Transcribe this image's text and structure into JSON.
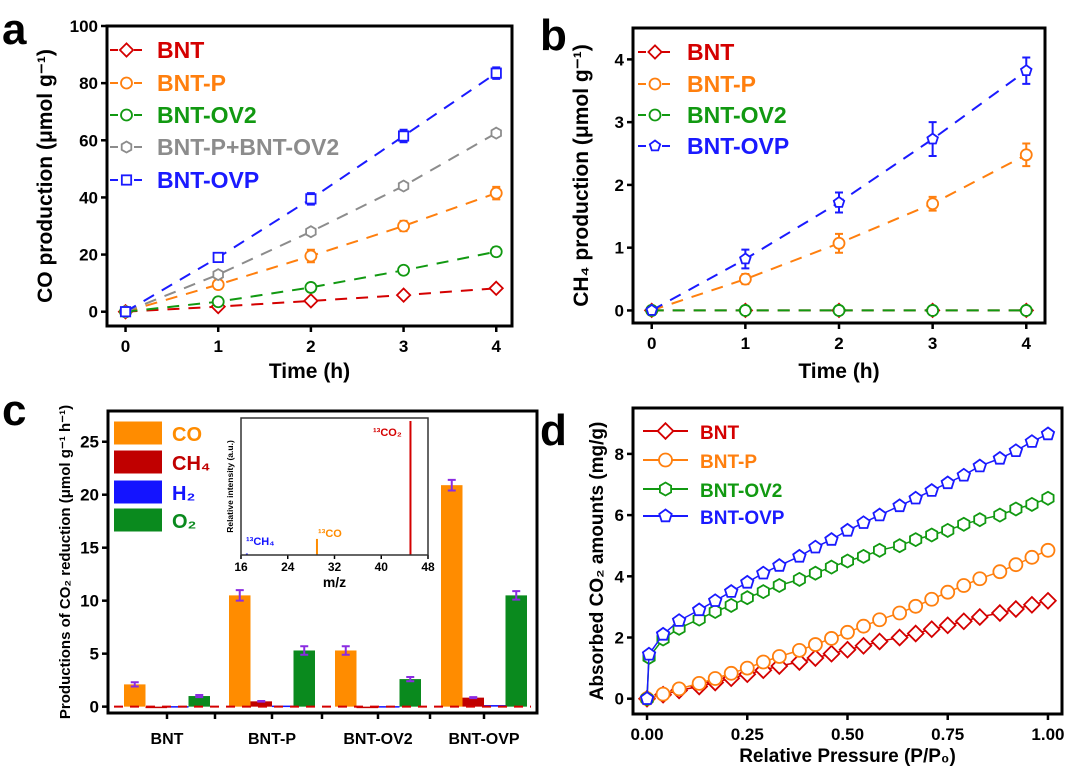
{
  "chart_data": [
    {
      "panel_label": "a",
      "type": "line",
      "xlabel": "Time (h)",
      "ylabel": "CO production (μmol g⁻¹)",
      "xlim": [
        -0.2,
        4.17
      ],
      "ylim": [
        -5,
        100
      ],
      "xticks": [
        0,
        1,
        2,
        3,
        4
      ],
      "yticks": [
        0,
        20,
        40,
        60,
        80,
        100
      ],
      "legend": "top-left",
      "grid": false,
      "line_style": "dashed",
      "series": [
        {
          "name": "BNT",
          "color": "#d40000",
          "marker": "diamond",
          "x": [
            0,
            1,
            2,
            3,
            4
          ],
          "y": [
            0,
            1.8,
            3.8,
            5.8,
            8.2
          ],
          "err": [
            0,
            0.5,
            0.6,
            0.6,
            0.7
          ]
        },
        {
          "name": "BNT-P",
          "color": "#ff7f0e",
          "marker": "circle",
          "x": [
            0,
            1,
            2,
            3,
            4
          ],
          "y": [
            0,
            9.5,
            19.5,
            30,
            41.5
          ],
          "err": [
            0,
            1.5,
            2.2,
            1.8,
            2.2
          ]
        },
        {
          "name": "BNT-OV2",
          "color": "#119911",
          "marker": "circle",
          "x": [
            0,
            1,
            2,
            3,
            4
          ],
          "y": [
            0,
            3.5,
            8.5,
            14.5,
            21
          ],
          "err": [
            0,
            0.8,
            1,
            1,
            1.5
          ]
        },
        {
          "name": "BNT-P+BNT-OV2",
          "color": "#8c8c8c",
          "marker": "hexagon",
          "x": [
            0,
            1,
            2,
            3,
            4
          ],
          "y": [
            0,
            13,
            28,
            44,
            62.5
          ],
          "err": [
            0,
            0,
            0,
            0,
            0
          ]
        },
        {
          "name": "BNT-OVP",
          "color": "#1a1aff",
          "marker": "square",
          "x": [
            0,
            1,
            2,
            3,
            4
          ],
          "y": [
            0,
            19,
            39.5,
            61.5,
            83.5
          ],
          "err": [
            0,
            1.5,
            2,
            2.2,
            2
          ]
        }
      ]
    },
    {
      "panel_label": "b",
      "type": "line",
      "xlabel": "Time (h)",
      "ylabel": "CH₄ production (μmol g⁻¹)",
      "xlim": [
        -0.2,
        4.2
      ],
      "ylim": [
        -0.2,
        4.5
      ],
      "xticks": [
        0,
        1,
        2,
        3,
        4
      ],
      "yticks": [
        0,
        1,
        2,
        3,
        4
      ],
      "legend": "top-left",
      "grid": false,
      "line_style": "dashed",
      "series": [
        {
          "name": "BNT",
          "color": "#d40000",
          "marker": "diamond",
          "x": [
            0,
            1,
            2,
            3,
            4
          ],
          "y": [
            0,
            0,
            0,
            0,
            0
          ],
          "err": [
            0,
            0,
            0,
            0,
            0
          ]
        },
        {
          "name": "BNT-P",
          "color": "#ff7f0e",
          "marker": "circle",
          "x": [
            0,
            1,
            2,
            3,
            4
          ],
          "y": [
            0,
            0.5,
            1.07,
            1.7,
            2.48
          ],
          "err": [
            0,
            0.08,
            0.15,
            0.11,
            0.18
          ]
        },
        {
          "name": "BNT-OV2",
          "color": "#119911",
          "marker": "circle",
          "x": [
            0,
            1,
            2,
            3,
            4
          ],
          "y": [
            0,
            0,
            0,
            0,
            0
          ],
          "err": [
            0,
            0,
            0,
            0,
            0
          ]
        },
        {
          "name": "BNT-OVP",
          "color": "#1a1aff",
          "marker": "pentagon",
          "x": [
            0,
            1,
            2,
            3,
            4
          ],
          "y": [
            0,
            0.82,
            1.72,
            2.73,
            3.82
          ],
          "err": [
            0,
            0.15,
            0.16,
            0.27,
            0.21
          ]
        }
      ]
    },
    {
      "panel_label": "c",
      "type": "bar",
      "xlabel": "",
      "ylabel": "Productions of CO₂ reduction (μmol g⁻¹ h⁻¹)",
      "ylim": [
        -0.6,
        27.9
      ],
      "yticks": [
        0,
        5,
        10,
        15,
        20,
        25
      ],
      "categories": [
        "BNT",
        "BNT-P",
        "BNT-OV2",
        "BNT-OVP"
      ],
      "legend": "top-left",
      "error_color": "#8a2be2",
      "zero_line_color": "#d40000",
      "series": [
        {
          "name": "CO",
          "color": "#ff8c00",
          "values": [
            2.1,
            10.5,
            5.3,
            20.9
          ],
          "err": [
            0.2,
            0.5,
            0.4,
            0.5
          ]
        },
        {
          "name": "CH₄",
          "color": "#c00000",
          "values": [
            -0.1,
            0.5,
            -0.1,
            0.85
          ],
          "err": [
            0,
            0.03,
            0,
            0.05
          ]
        },
        {
          "name": "H₂",
          "color": "#1414ff",
          "values": [
            0.05,
            0.1,
            0.05,
            0.15
          ],
          "err": [
            0,
            0,
            0,
            0
          ]
        },
        {
          "name": "O₂",
          "color": "#0a8a1e",
          "values": [
            1.0,
            5.3,
            2.6,
            10.5
          ],
          "err": [
            0.1,
            0.4,
            0.2,
            0.4
          ]
        }
      ],
      "inset": {
        "type": "bar",
        "xlabel": "m/z",
        "ylabel": "Relative intensity (a.u.)",
        "xlim": [
          16,
          48
        ],
        "xticks": [
          16,
          24,
          32,
          40,
          48
        ],
        "peaks": [
          {
            "label": "¹³CH₄",
            "x": 17,
            "intensity": 0.01,
            "color": "#1414ff"
          },
          {
            "label": "¹³CO",
            "x": 29,
            "intensity": 0.12,
            "color": "#ff8c00"
          },
          {
            "label": "¹³CO₂",
            "x": 45,
            "intensity": 1.0,
            "color": "#d40000"
          }
        ]
      }
    },
    {
      "panel_label": "d",
      "type": "line",
      "xlabel": "Relative Pressure (P/P₀)",
      "ylabel": "Absorbed CO₂ amounts (mg/g)",
      "xlim": [
        -0.035,
        1.035
      ],
      "ylim": [
        -0.5,
        9.5
      ],
      "xticks": [
        0,
        0.25,
        0.5,
        0.75,
        1.0
      ],
      "xtick_labels": [
        "0.00",
        "0.25",
        "0.50",
        "0.75",
        "1.00"
      ],
      "yticks": [
        0,
        2,
        4,
        6,
        8
      ],
      "legend": "top-left",
      "grid": false,
      "line_style": "solid",
      "series": [
        {
          "name": "BNT",
          "color": "#d40000",
          "marker": "diamond",
          "x": [
            0,
            0.04,
            0.08,
            0.13,
            0.17,
            0.21,
            0.25,
            0.29,
            0.33,
            0.38,
            0.42,
            0.46,
            0.5,
            0.54,
            0.58,
            0.63,
            0.67,
            0.71,
            0.75,
            0.79,
            0.83,
            0.88,
            0.92,
            0.96,
            1.0
          ],
          "y": [
            0,
            0.13,
            0.27,
            0.4,
            0.53,
            0.67,
            0.8,
            0.93,
            1.07,
            1.2,
            1.33,
            1.47,
            1.6,
            1.73,
            1.87,
            2.0,
            2.13,
            2.27,
            2.4,
            2.53,
            2.67,
            2.8,
            2.93,
            3.07,
            3.2
          ]
        },
        {
          "name": "BNT-P",
          "color": "#ff7f0e",
          "marker": "circle",
          "x": [
            0,
            0.04,
            0.08,
            0.13,
            0.17,
            0.21,
            0.25,
            0.29,
            0.33,
            0.38,
            0.42,
            0.46,
            0.5,
            0.54,
            0.58,
            0.63,
            0.67,
            0.71,
            0.75,
            0.79,
            0.83,
            0.88,
            0.92,
            0.96,
            1.0
          ],
          "y": [
            0,
            0.15,
            0.32,
            0.5,
            0.66,
            0.83,
            1.0,
            1.2,
            1.38,
            1.58,
            1.77,
            1.97,
            2.17,
            2.37,
            2.58,
            2.8,
            3.02,
            3.25,
            3.48,
            3.7,
            3.92,
            4.15,
            4.38,
            4.62,
            4.85
          ]
        },
        {
          "name": "BNT-OV2",
          "color": "#119911",
          "marker": "hexagon",
          "x": [
            0,
            0.005,
            0.04,
            0.08,
            0.13,
            0.17,
            0.21,
            0.25,
            0.29,
            0.33,
            0.38,
            0.42,
            0.46,
            0.5,
            0.54,
            0.58,
            0.63,
            0.67,
            0.71,
            0.75,
            0.79,
            0.83,
            0.88,
            0.92,
            0.96,
            1.0
          ],
          "y": [
            0,
            1.35,
            1.95,
            2.3,
            2.6,
            2.85,
            3.05,
            3.3,
            3.5,
            3.7,
            3.9,
            4.1,
            4.3,
            4.5,
            4.65,
            4.85,
            5.0,
            5.2,
            5.35,
            5.5,
            5.7,
            5.85,
            6.0,
            6.2,
            6.35,
            6.55
          ]
        },
        {
          "name": "BNT-OVP",
          "color": "#1a1aff",
          "marker": "pentagon",
          "x": [
            0,
            0.005,
            0.04,
            0.08,
            0.13,
            0.17,
            0.21,
            0.25,
            0.29,
            0.33,
            0.38,
            0.42,
            0.46,
            0.5,
            0.54,
            0.58,
            0.63,
            0.67,
            0.71,
            0.75,
            0.79,
            0.83,
            0.88,
            0.92,
            0.96,
            1.0
          ],
          "y": [
            0,
            1.45,
            2.1,
            2.55,
            2.9,
            3.2,
            3.5,
            3.8,
            4.1,
            4.35,
            4.65,
            4.95,
            5.2,
            5.5,
            5.75,
            6.0,
            6.3,
            6.55,
            6.8,
            7.05,
            7.3,
            7.6,
            7.85,
            8.1,
            8.4,
            8.65
          ]
        }
      ]
    }
  ]
}
